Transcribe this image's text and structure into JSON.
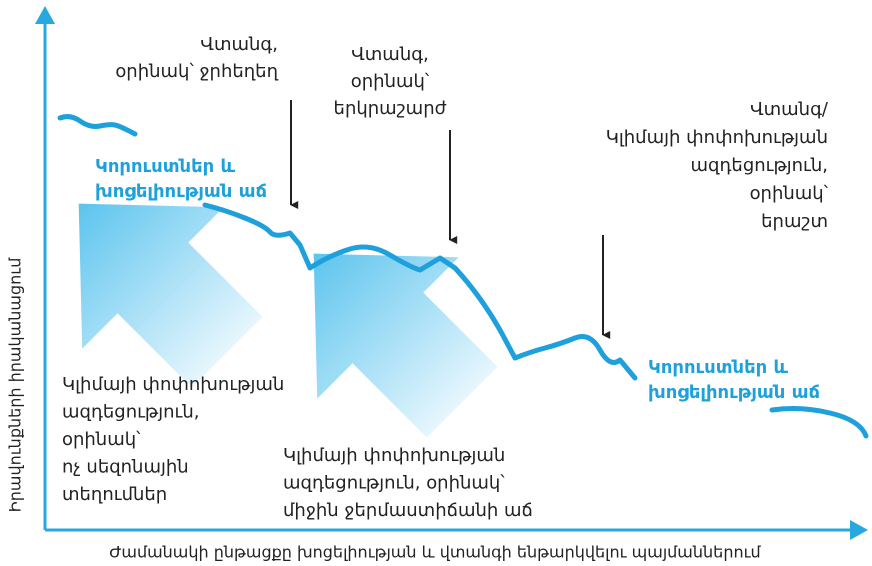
{
  "y_axis_label": "Իրավունքների իրականացում",
  "x_axis_label": "Ժամանակի ընթացքը խոցելիության և վտանգի ենթարկվելու պայմաններում",
  "hazard_flood": [
    "Վտանգ,",
    "օրինակ՝ ջրհեղեղ"
  ],
  "hazard_earthquake": [
    "Վտանգ,",
    "օրինակ՝",
    "երկրաշարժ"
  ],
  "hazard_drought": [
    "Վտանգ/",
    "Կլիմայի փոփոխության",
    "ազդեցություն,",
    "օրինակ՝",
    "երաշտ"
  ],
  "losses_1": [
    "Կորուստներ և",
    "խոցելիության աճ"
  ],
  "losses_2": [
    "Կորուստներ և",
    "խոցելիության աճ"
  ],
  "climate_rain": [
    "Կլիմայի փոփոխության",
    "ազդեցություն,",
    "օրինակ՝",
    "ոչ սեզոնային",
    "տեղումներ"
  ],
  "climate_temperature": [
    "Կլիմայի փոփոխության",
    "ազդեցություն, օրինակ՝",
    "միջին ջերմաստիճանի աճ"
  ]
}
